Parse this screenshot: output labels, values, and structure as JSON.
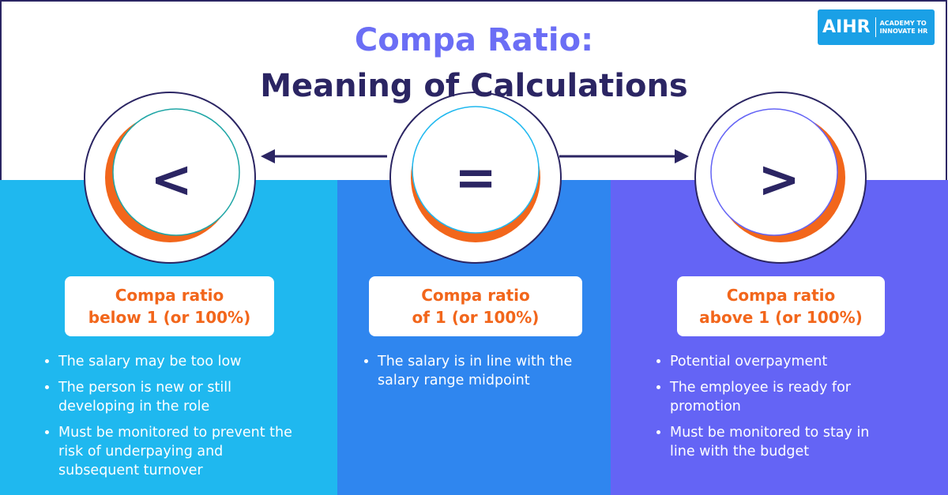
{
  "header": {
    "title_line1": "Compa Ratio:",
    "title_line2": "Meaning of Calculations"
  },
  "logo": {
    "mark": "AIHR",
    "tagline_line1": "ACADEMY TO",
    "tagline_line2": "INNOVATE HR"
  },
  "columns": [
    {
      "symbol": "<",
      "heading_line1": "Compa ratio",
      "heading_line2": "below 1 (or 100%)",
      "bullets": [
        "The salary may be too low",
        "The person is new or still developing in the role",
        "Must be monitored to prevent the risk of underpaying and subsequent turnover"
      ]
    },
    {
      "symbol": "=",
      "heading_line1": "Compa ratio",
      "heading_line2": "of 1 (or 100%)",
      "bullets": [
        "The salary is in line with the salary range midpoint"
      ]
    },
    {
      "symbol": ">",
      "heading_line1": "Compa ratio",
      "heading_line2": "above 1 (or 100%)",
      "bullets": [
        "Potential overpayment",
        "The employee is ready for promotion",
        "Must be monitored to stay in line with the budget"
      ]
    }
  ]
}
